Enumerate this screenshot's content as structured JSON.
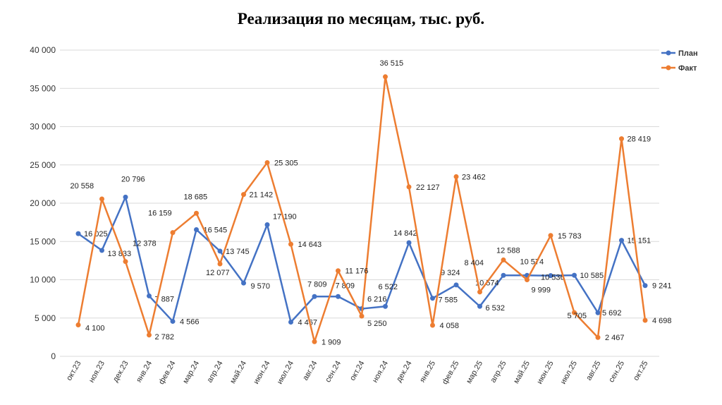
{
  "chart_data": {
    "type": "line",
    "title": "Реализация по месяцам, тыс. руб.",
    "categories": [
      "окт.23",
      "ноя.23",
      "дек.23",
      "янв.24",
      "фев.24",
      "мар.24",
      "апр.24",
      "май.24",
      "июн.24",
      "июл.24",
      "авг.24",
      "сен.24",
      "окт.24",
      "ноя.24",
      "дек.24",
      "янв.25",
      "фев.25",
      "мар.25",
      "апр.25",
      "май.25",
      "июн.25",
      "июл.25",
      "авг.25",
      "сен.25",
      "окт.25"
    ],
    "series": [
      {
        "name": "План",
        "color": "#4472C4",
        "values": [
          16025,
          13833,
          20796,
          7887,
          4566,
          16545,
          13745,
          9570,
          17190,
          4467,
          7809,
          7809,
          6216,
          6522,
          14842,
          7585,
          9324,
          6532,
          10574,
          10574,
          10536,
          10585,
          5692,
          15151,
          9241
        ],
        "labels": [
          "16 025",
          "13 833",
          "20 796",
          "7 887",
          "4 566",
          "16 545",
          "13 745",
          "9 570",
          "17 190",
          "4 467",
          "7 809",
          "7 809",
          "6 216",
          "6 522",
          "14 842",
          "7 585",
          "9 324",
          "6 532",
          "10 574",
          "10 574",
          "10 536",
          "10 585",
          "5 692",
          "15 151",
          "9 241"
        ]
      },
      {
        "name": "Факт",
        "color": "#ED7D31",
        "values": [
          4100,
          20558,
          12378,
          2782,
          16159,
          18685,
          12077,
          21142,
          25305,
          14643,
          1909,
          11176,
          5250,
          36515,
          22127,
          4058,
          23462,
          8404,
          12588,
          9999,
          15783,
          5705,
          2467,
          28419,
          4698
        ],
        "labels": [
          "4 100",
          "20 558",
          "12 378",
          "2 782",
          "16 159",
          "18 685",
          "12 077",
          "21 142",
          "25 305",
          "14 643",
          "1 909",
          "11 176",
          "5 250",
          "36 515",
          "22 127",
          "4 058",
          "23 462",
          "8 404",
          "12 588",
          "9 999",
          "15 783",
          "5 705",
          "2 467",
          "28 419",
          "4 698"
        ]
      }
    ],
    "ylim": [
      0,
      40000
    ],
    "yticks": [
      "0",
      "5 000",
      "10 000",
      "15 000",
      "20 000",
      "25 000",
      "30 000",
      "35 000",
      "40 000"
    ],
    "grid": true,
    "legend": "top-right"
  }
}
